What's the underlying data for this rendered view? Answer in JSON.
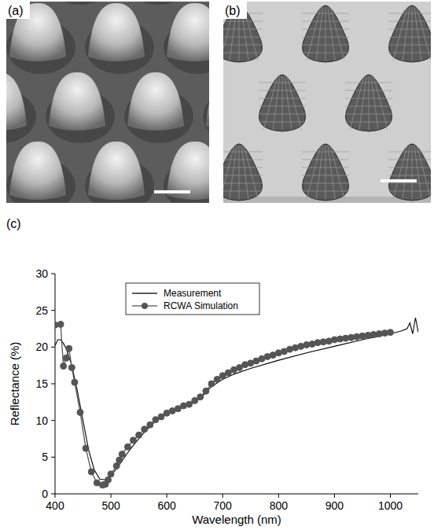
{
  "panel_labels": [
    "(a)",
    "(b)",
    "(c)"
  ],
  "chart_data": {
    "type": "line",
    "x_label": "Wavelength (nm)",
    "y_label": "Reflectance (%)",
    "xlim": [
      400,
      1050
    ],
    "xticks": [
      400,
      500,
      600,
      700,
      800,
      900,
      1000
    ],
    "ylim": [
      0,
      30
    ],
    "yticks": [
      0,
      5,
      10,
      15,
      20,
      25,
      30
    ],
    "grid": false,
    "legend": "top",
    "series": [
      {
        "name": "Measurement",
        "color": "#000000",
        "marker": "none",
        "line_style": "solid",
        "x": [
          400,
          405,
          410,
          415,
          420,
          430,
          440,
          450,
          460,
          470,
          480,
          490,
          500,
          510,
          520,
          530,
          540,
          550,
          560,
          570,
          580,
          590,
          600,
          620,
          640,
          660,
          670,
          680,
          700,
          720,
          750,
          800,
          850,
          900,
          950,
          1000,
          1020,
          1030,
          1035,
          1040,
          1045,
          1050
        ],
        "values": [
          20.2,
          21.0,
          21.0,
          20.5,
          19.8,
          17.5,
          14.0,
          10.0,
          6.0,
          3.3,
          2.0,
          1.9,
          2.5,
          3.4,
          4.5,
          5.6,
          6.6,
          7.5,
          8.4,
          9.2,
          9.9,
          10.5,
          11.0,
          11.6,
          12.1,
          13.0,
          13.8,
          14.6,
          15.6,
          16.3,
          17.1,
          18.2,
          19.2,
          20.1,
          21.0,
          21.8,
          22.2,
          22.5,
          23.3,
          21.8,
          24.0,
          22.0
        ]
      },
      {
        "name": "RCWA Simulation",
        "color": "#555555",
        "marker": "circle",
        "line_style": "solid",
        "x": [
          400,
          410,
          415,
          420,
          425,
          430,
          435,
          445,
          455,
          465,
          475,
          485,
          490,
          495,
          500,
          510,
          515,
          520,
          530,
          540,
          550,
          560,
          570,
          580,
          590,
          600,
          610,
          620,
          630,
          640,
          650,
          660,
          670,
          680,
          690,
          700,
          710,
          720,
          730,
          740,
          750,
          760,
          770,
          780,
          790,
          800,
          810,
          820,
          830,
          840,
          850,
          860,
          870,
          880,
          890,
          900,
          910,
          920,
          930,
          940,
          950,
          960,
          970,
          980,
          990,
          1000
        ],
        "values": [
          23.0,
          23.1,
          17.4,
          18.5,
          19.8,
          17.2,
          15.2,
          11.1,
          6.2,
          3.0,
          1.5,
          1.2,
          1.3,
          1.9,
          2.7,
          3.8,
          4.6,
          5.4,
          6.4,
          7.3,
          8.0,
          8.8,
          9.4,
          10.1,
          10.5,
          11.0,
          11.3,
          11.6,
          12.0,
          12.2,
          12.7,
          13.2,
          14.0,
          15.0,
          15.6,
          16.1,
          16.5,
          16.9,
          17.2,
          17.6,
          17.8,
          18.1,
          18.4,
          18.7,
          18.9,
          19.2,
          19.4,
          19.7,
          19.9,
          20.1,
          20.3,
          20.4,
          20.6,
          20.7,
          20.8,
          21.0,
          21.1,
          21.2,
          21.3,
          21.4,
          21.5,
          21.6,
          21.7,
          21.8,
          21.9,
          22.0
        ]
      }
    ]
  }
}
